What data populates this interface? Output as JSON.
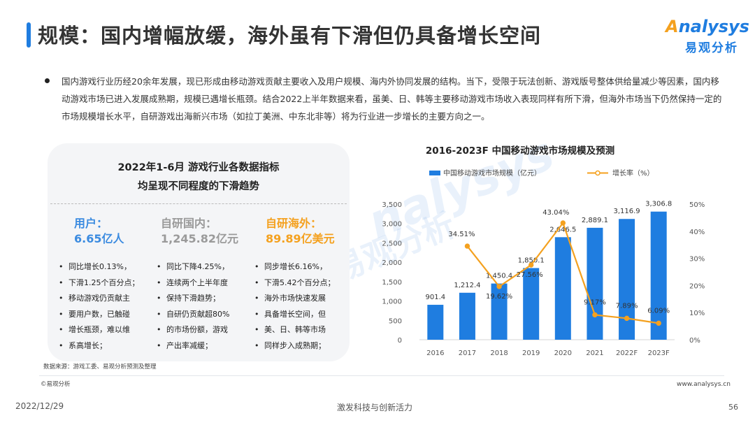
{
  "page": {
    "title": "规模：国内增幅放缓，海外虽有下滑但仍具备增长空间",
    "logo_top": "nalysys",
    "logo_top_a": "A",
    "logo_bottom": "易观分析",
    "intro": "国内游戏行业历经20余年发展，现已形成由移动游戏贡献主要收入及用户规模、海内外协同发展的结构。当下，受限于玩法创新、游戏版号整体供给量减少等因素，国内移动游戏市场已进入发展成熟期，规模已遇增长瓶颈。结合2022上半年数据来看，虽美、日、韩等主要移动游戏市场收入表现同样有所下滑，但海外市场当下仍然保持一定的市场规模增长水平，自研游戏出海新兴市场（如拉丁美洲、中东北非等）将为行业进一步增长的主要方向之一。",
    "watermark": "nalysys",
    "watermark2": "易观分析"
  },
  "panel": {
    "title_line1": "2022年1-6月 游戏行业各数据指标",
    "title_line2": "均呈现不同程度的下滑趋势",
    "stats": [
      {
        "label": "用户：",
        "value": "6.65亿人",
        "color": "#3b8be0",
        "bullets": [
          "同比增长0.13%，",
          "下滑1.25个百分点；",
          "移动游戏仍贡献主",
          "要用户数，已触碰",
          "增长瓶颈，难以维",
          "系高增长；"
        ]
      },
      {
        "label": "自研国内：",
        "value": "1,245.82亿元",
        "color": "#9a9a9a",
        "bullets": [
          "同比下降4.25%，",
          "连续两个上半年度",
          "保持下滑趋势；",
          "自研仍贡献超80%",
          "的市场份额，游戏",
          "产出率减缓；"
        ]
      },
      {
        "label": "自研海外：",
        "value": "89.89亿美元",
        "color": "#f4a11f",
        "bullets": [
          "同步增长6.16%，",
          "下滑5.42个百分点；",
          "海外市场快速发展",
          "具备增长空间，但",
          "美、日、韩等市场",
          "同样步入成熟期；"
        ]
      }
    ]
  },
  "chart_data": {
    "type": "bar",
    "title": "2016-2023F 中国移动游戏市场规模及预测",
    "categories": [
      "2016",
      "2017",
      "2018",
      "2019",
      "2020",
      "2021",
      "2022F",
      "2023F"
    ],
    "series": [
      {
        "name": "中国移动游戏市场规模（亿元）",
        "type": "bar",
        "axis": "left",
        "color": "#1f7de0",
        "values": [
          901.4,
          1212.4,
          1450.4,
          1850.1,
          2646.5,
          2889.1,
          3116.9,
          3306.8
        ],
        "labels": [
          "901.4",
          "1,212.4",
          "1,450.4",
          "1,850.1",
          "2,646.5",
          "2,889.1",
          "3,116.9",
          "3,306.8"
        ]
      },
      {
        "name": "增长率（%）",
        "type": "line",
        "axis": "right",
        "color": "#f4a11f",
        "values": [
          null,
          34.51,
          19.62,
          27.56,
          43.04,
          9.17,
          7.89,
          6.09
        ],
        "labels": [
          "",
          "34.51%",
          "19.62%",
          "27.56%",
          "43.04%",
          "9.17%",
          "7.89%",
          "6.09%"
        ]
      }
    ],
    "y_left": {
      "ylim": [
        0,
        3500
      ],
      "ticks": [
        "0",
        "500",
        "1,000",
        "1,500",
        "2,000",
        "2,500",
        "3,000",
        "3,500"
      ]
    },
    "y_right": {
      "ylim": [
        0,
        50
      ],
      "ticks": [
        "0%",
        "10%",
        "20%",
        "30%",
        "40%",
        "50%"
      ]
    },
    "legend": "top",
    "grid": false
  },
  "footer": {
    "source": "数据来源：游戏工委、易观分析预测及整理",
    "copyright": "©易观分析",
    "website": "www.analysys.cn",
    "date": "2022/12/29",
    "slogan": "激发科技与创新活力",
    "page_number": "56"
  }
}
